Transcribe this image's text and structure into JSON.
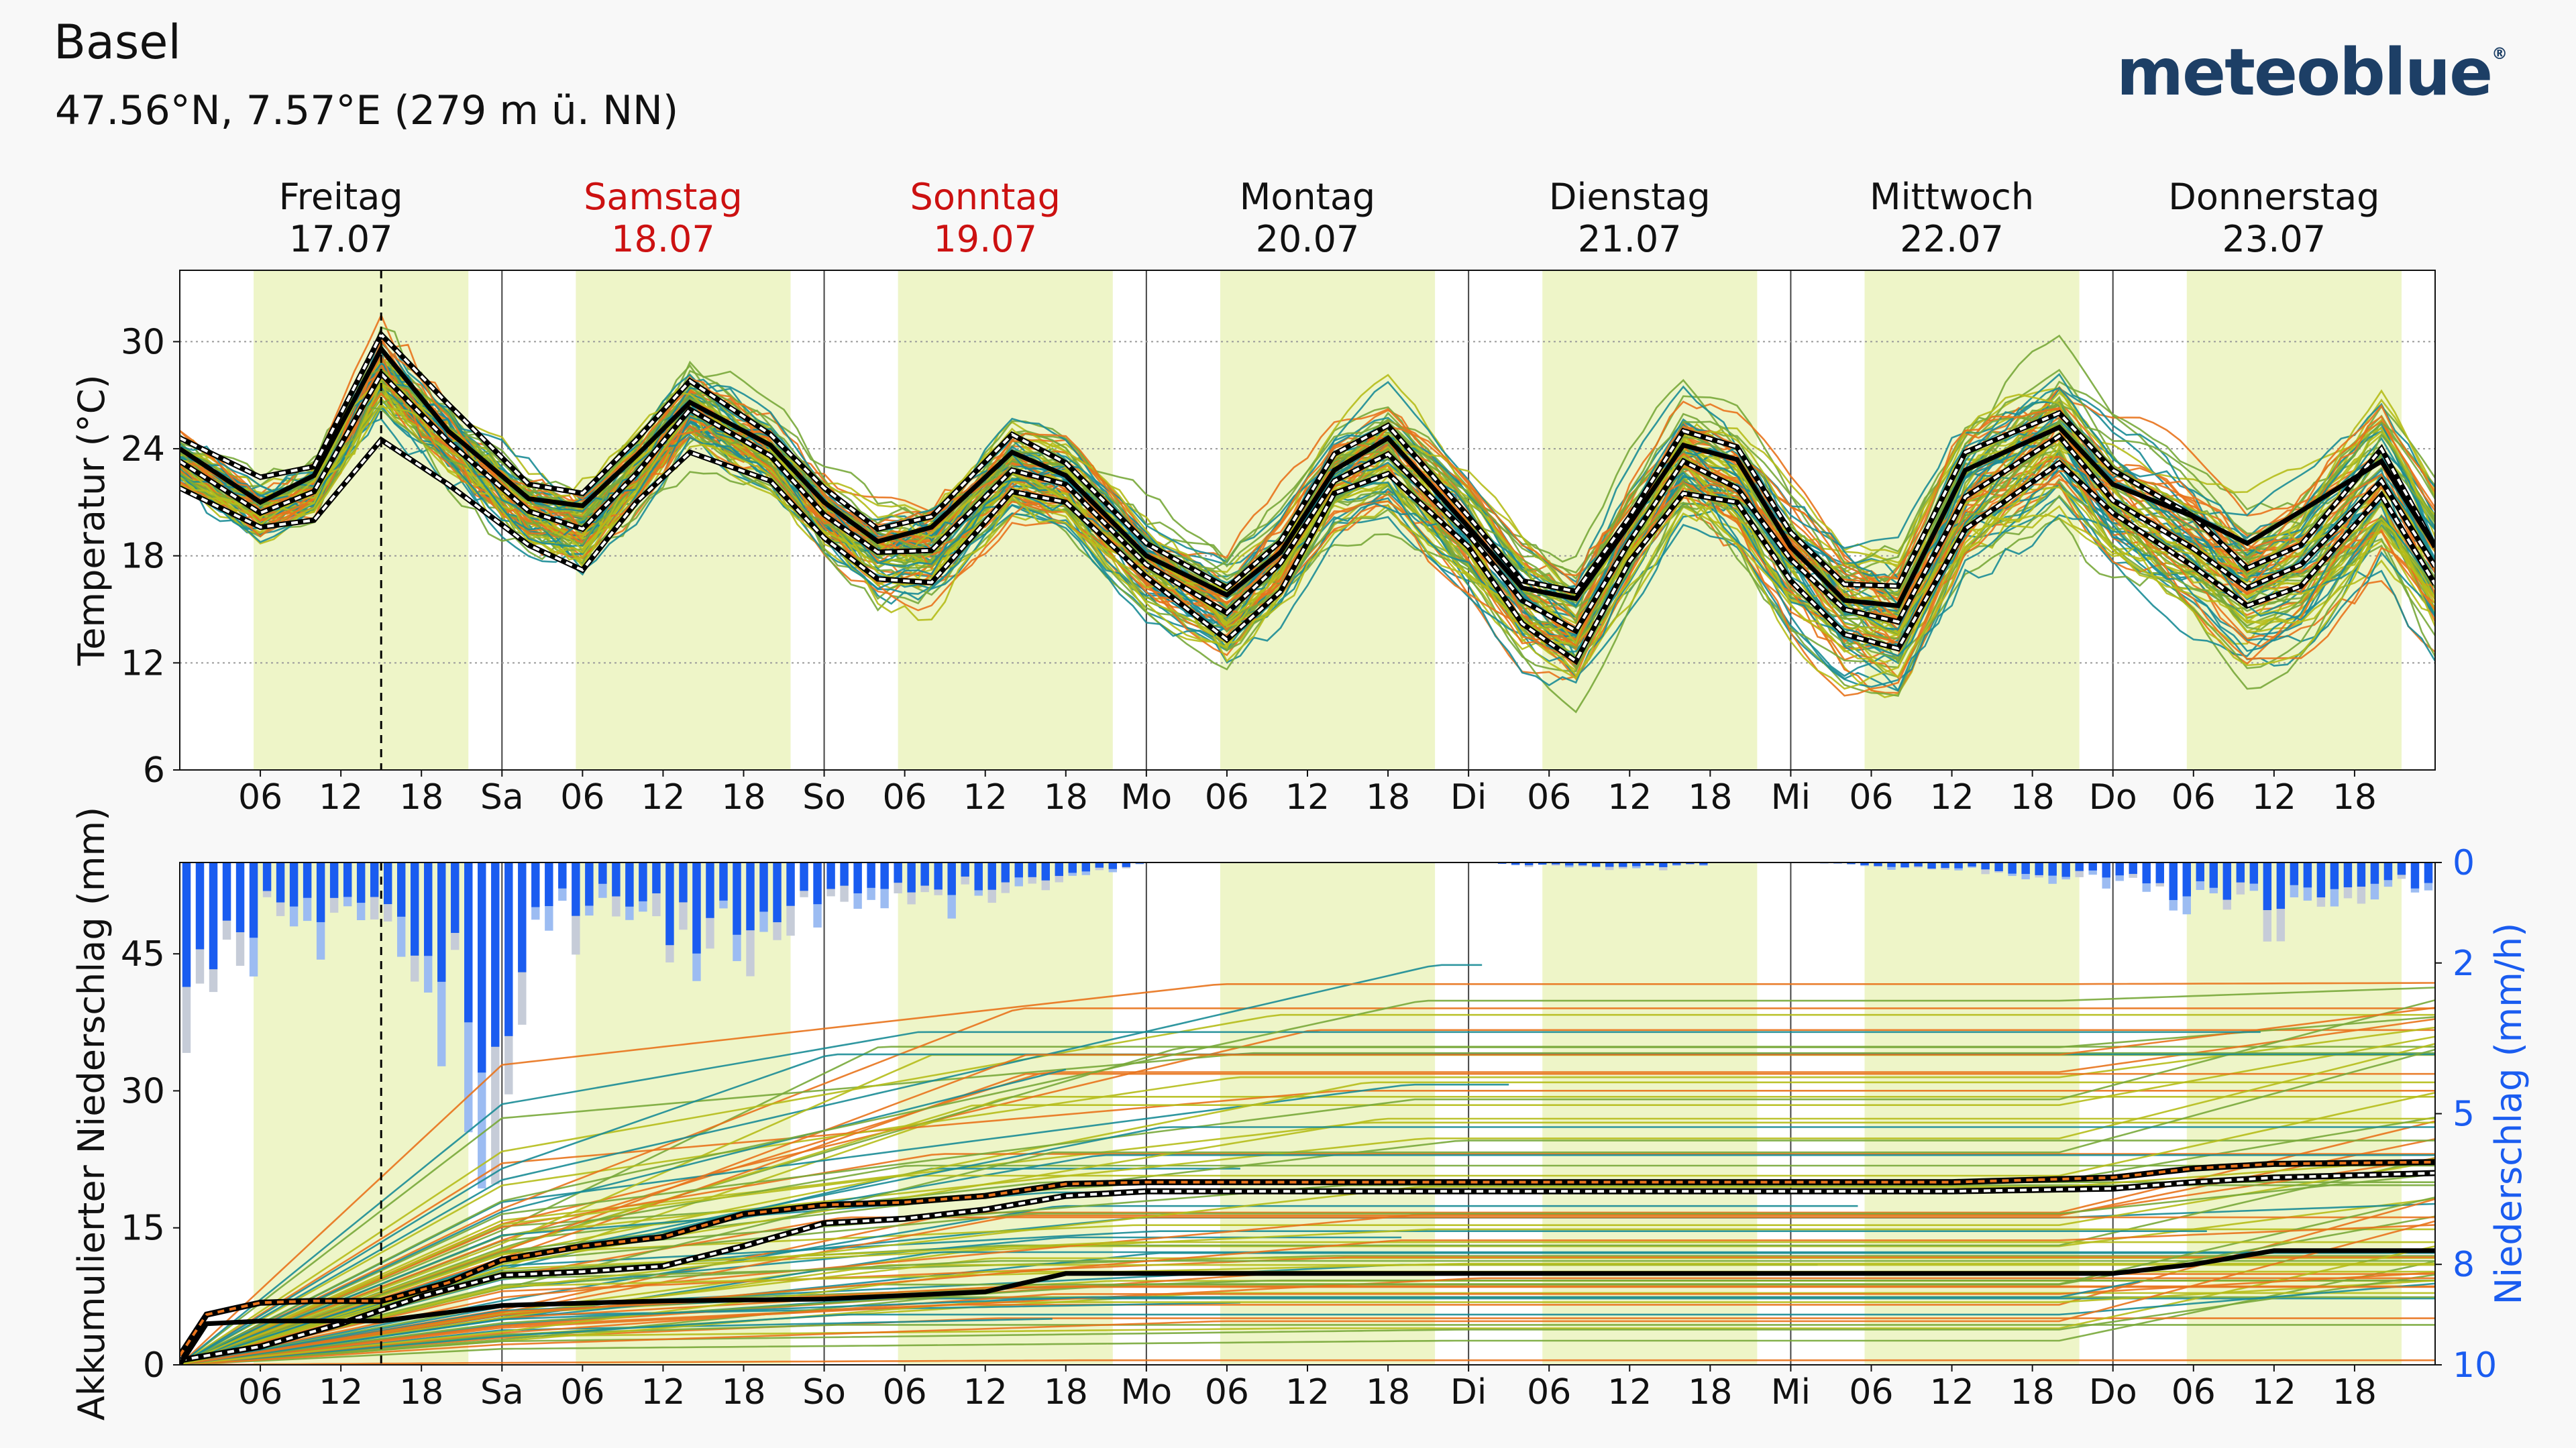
{
  "header": {
    "location": "Basel",
    "coordinates": "47.56°N, 7.57°E (279 m ü. NN)",
    "logo": "meteoblue",
    "logo_mark": "®"
  },
  "colors": {
    "background": "#f8f8f8",
    "daylight_band": "#eef5c8",
    "weekend_red": "#cc1111",
    "text": "#111111",
    "precip_blue": "#1a5cf0",
    "precip_blue_light": "#9cbcf2",
    "precip_grey": "#c6ccd8",
    "logo_blue": "#1d3f66",
    "ensemble_orange": "#e8731c",
    "ensemble_olive": "#b5bd1a",
    "ensemble_teal": "#1a8c96",
    "ensemble_green": "#78a83a",
    "mean_line": "#000000"
  },
  "days": [
    {
      "name": "Freitag",
      "date": "17.07",
      "weekend": false
    },
    {
      "name": "Samstag",
      "date": "18.07",
      "weekend": true
    },
    {
      "name": "Sonntag",
      "date": "19.07",
      "weekend": true
    },
    {
      "name": "Montag",
      "date": "20.07",
      "weekend": false
    },
    {
      "name": "Dienstag",
      "date": "21.07",
      "weekend": false
    },
    {
      "name": "Mittwoch",
      "date": "22.07",
      "weekend": false
    },
    {
      "name": "Donnerstag",
      "date": "23.07",
      "weekend": false
    }
  ],
  "x_tick_labels": [
    "06",
    "12",
    "18",
    "Sa",
    "06",
    "12",
    "18",
    "So",
    "06",
    "12",
    "18",
    "Mo",
    "06",
    "12",
    "18",
    "Di",
    "06",
    "12",
    "18",
    "Mi",
    "06",
    "12",
    "18",
    "Do",
    "06",
    "12",
    "18"
  ],
  "chart_data": [
    {
      "type": "line",
      "ylabel": "Temperatur (°C)",
      "ylim": [
        6,
        34
      ],
      "yticks": [
        6,
        12,
        18,
        24,
        30
      ],
      "x_unit": "hours from 17.07 00:00",
      "xlim": [
        0,
        168
      ],
      "now_marker_hour": 15,
      "daylight_hours": [
        5.5,
        21.5
      ],
      "grid": "horizontal dotted at ticks, vertical solid at midnight",
      "ensemble_member_count": 90,
      "series": [
        {
          "role": "mean",
          "x": [
            0,
            6,
            10,
            15,
            20,
            26,
            30,
            34,
            38,
            44,
            48,
            52,
            56,
            62,
            66,
            72,
            78,
            82,
            86,
            90,
            96,
            100,
            104,
            108,
            112,
            116,
            120,
            124,
            128,
            133,
            140,
            144,
            150,
            154,
            158,
            164,
            168
          ],
          "values": [
            24,
            21,
            22.5,
            29.6,
            25,
            21.2,
            20.8,
            23.6,
            26.6,
            24.2,
            21,
            18.8,
            19.6,
            23.8,
            22.5,
            18,
            15.8,
            18.2,
            22.8,
            24.6,
            19.6,
            16.2,
            15.6,
            19.8,
            24.2,
            23.4,
            18.5,
            15.5,
            15.2,
            22.8,
            25.2,
            22,
            20.2,
            18.7,
            20.5,
            23.3,
            18.5
          ]
        },
        {
          "role": "median",
          "x": [
            0,
            6,
            10,
            15,
            20,
            26,
            30,
            34,
            38,
            44,
            48,
            52,
            56,
            62,
            66,
            72,
            78,
            82,
            86,
            90,
            96,
            100,
            104,
            108,
            112,
            116,
            120,
            124,
            128,
            133,
            140,
            144,
            150,
            154,
            158,
            164,
            168
          ],
          "values": [
            23.3,
            20.4,
            21.6,
            28.2,
            24.4,
            20.5,
            19.5,
            22.6,
            26.2,
            23.6,
            20.3,
            18.2,
            18.3,
            22.8,
            22,
            17.5,
            14.8,
            17.6,
            22.2,
            23.7,
            19.2,
            15.5,
            13.8,
            18.8,
            23.3,
            21.8,
            17.8,
            15,
            14.3,
            21.3,
            24.7,
            21.1,
            18.4,
            16.2,
            17.5,
            22.2,
            17.4
          ]
        },
        {
          "role": "percentile band lower",
          "x": [
            0,
            6,
            10,
            15,
            20,
            26,
            30,
            34,
            38,
            44,
            48,
            52,
            56,
            62,
            66,
            72,
            78,
            82,
            86,
            90,
            96,
            100,
            104,
            108,
            112,
            116,
            120,
            124,
            128,
            133,
            140,
            144,
            150,
            154,
            158,
            164,
            168
          ],
          "values": [
            21.8,
            19.6,
            20,
            24.5,
            22,
            18.6,
            17.2,
            21,
            23.8,
            22.2,
            19,
            16.7,
            16.5,
            21.6,
            21,
            16.8,
            13.3,
            16,
            21.5,
            22.6,
            18.5,
            14.2,
            12.1,
            17.7,
            21.5,
            21,
            16.6,
            13.6,
            12.8,
            19.5,
            23.2,
            20.4,
            17.4,
            15.2,
            16.3,
            21.4,
            16.4
          ]
        },
        {
          "role": "percentile band upper",
          "x": [
            0,
            6,
            10,
            15,
            20,
            26,
            30,
            34,
            38,
            44,
            48,
            52,
            56,
            62,
            66,
            72,
            78,
            82,
            86,
            90,
            96,
            100,
            104,
            108,
            112,
            116,
            120,
            124,
            128,
            133,
            140,
            144,
            150,
            154,
            158,
            164,
            168
          ],
          "values": [
            24.6,
            22.4,
            23,
            30.4,
            26.5,
            22,
            21.5,
            24.5,
            27.8,
            24.8,
            21.8,
            19.5,
            20.2,
            24.8,
            23.2,
            18.7,
            16.2,
            18.8,
            23.7,
            25.3,
            20.2,
            16.6,
            16,
            20.2,
            25,
            24.1,
            19.3,
            16.4,
            16.3,
            23.8,
            26,
            22.8,
            20.2,
            17.3,
            18.6,
            24,
            18.5
          ]
        }
      ]
    },
    {
      "type": "line",
      "ylabel": "Akkumulierter Niederschlag (mm)",
      "ylim": [
        0,
        55
      ],
      "yticks": [
        0,
        15,
        30,
        45
      ],
      "y2label": "Niederschlag (mm/h)",
      "y2lim": [
        10,
        0
      ],
      "y2ticks": [
        0,
        2,
        5,
        8,
        10
      ],
      "x_unit": "hours from 17.07 00:00",
      "xlim": [
        0,
        168
      ],
      "now_marker_hour": 15,
      "ensemble_member_count": 90,
      "series": [
        {
          "role": "median accumulated",
          "x": [
            0,
            2,
            6,
            10,
            15,
            24,
            36,
            48,
            60,
            66,
            72,
            84,
            96,
            108,
            120,
            132,
            144,
            150,
            156,
            168
          ],
          "values": [
            0,
            4.5,
            4.8,
            4.8,
            4.8,
            6.5,
            7,
            7.2,
            8,
            10,
            10,
            10,
            10,
            10,
            10,
            10,
            10,
            11,
            12.5,
            12.5
          ]
        },
        {
          "role": "mean accumulated",
          "x": [
            0,
            2,
            6,
            10,
            15,
            20,
            24,
            30,
            36,
            42,
            48,
            54,
            60,
            66,
            72,
            84,
            96,
            108,
            120,
            132,
            144,
            150,
            156,
            168
          ],
          "values": [
            1,
            5.5,
            6.8,
            7,
            7,
            9,
            11.5,
            13,
            14,
            16.5,
            17.5,
            17.8,
            18.5,
            19.8,
            20,
            20,
            20,
            20,
            20,
            20,
            20.5,
            21.5,
            22,
            22.2
          ]
        },
        {
          "role": "lower percentile accumulated",
          "x": [
            0,
            6,
            12,
            18,
            24,
            30,
            36,
            42,
            48,
            54,
            60,
            66,
            72,
            84,
            96,
            108,
            120,
            132,
            144,
            150,
            156,
            168
          ],
          "values": [
            0.5,
            2,
            4.5,
            7.5,
            9.8,
            10.2,
            10.8,
            13,
            15.5,
            16,
            17,
            18.5,
            19,
            19,
            19,
            19,
            19,
            19,
            19.3,
            20,
            20.5,
            21
          ]
        },
        {
          "role": "hourly precipitation bars (mm/h)",
          "x": [
            0,
            1,
            2,
            3,
            4,
            5,
            6,
            8,
            10,
            12,
            14,
            15,
            16,
            18,
            19,
            20,
            21,
            22,
            23,
            24,
            26,
            28,
            30,
            32,
            36,
            40,
            44,
            48,
            52,
            56,
            60,
            64,
            66,
            68,
            70,
            72,
            80,
            96,
            108,
            116,
            120,
            132,
            144,
            146,
            148,
            150,
            152,
            154,
            156,
            158,
            160,
            162,
            164,
            166,
            168
          ],
          "values": [
            1.5,
            2.2,
            2.6,
            1.9,
            1.6,
            1.2,
            1.0,
            0.9,
            0.8,
            0.9,
            1.0,
            1.0,
            0.9,
            2.0,
            2.6,
            1.5,
            2.8,
            3.2,
            3.8,
            3.8,
            1.2,
            0.9,
            0.8,
            0.7,
            1.1,
            1.4,
            0.9,
            0.7,
            0.5,
            0.5,
            0.5,
            0.4,
            0.4,
            0.1,
            0.1,
            0,
            0,
            0,
            0.1,
            0,
            0,
            0.1,
            0.3,
            0.4,
            0.5,
            0.6,
            0.5,
            0.6,
            0.7,
            0.7,
            0.6,
            0.5,
            0.5,
            0.4,
            0.3
          ]
        }
      ]
    }
  ]
}
